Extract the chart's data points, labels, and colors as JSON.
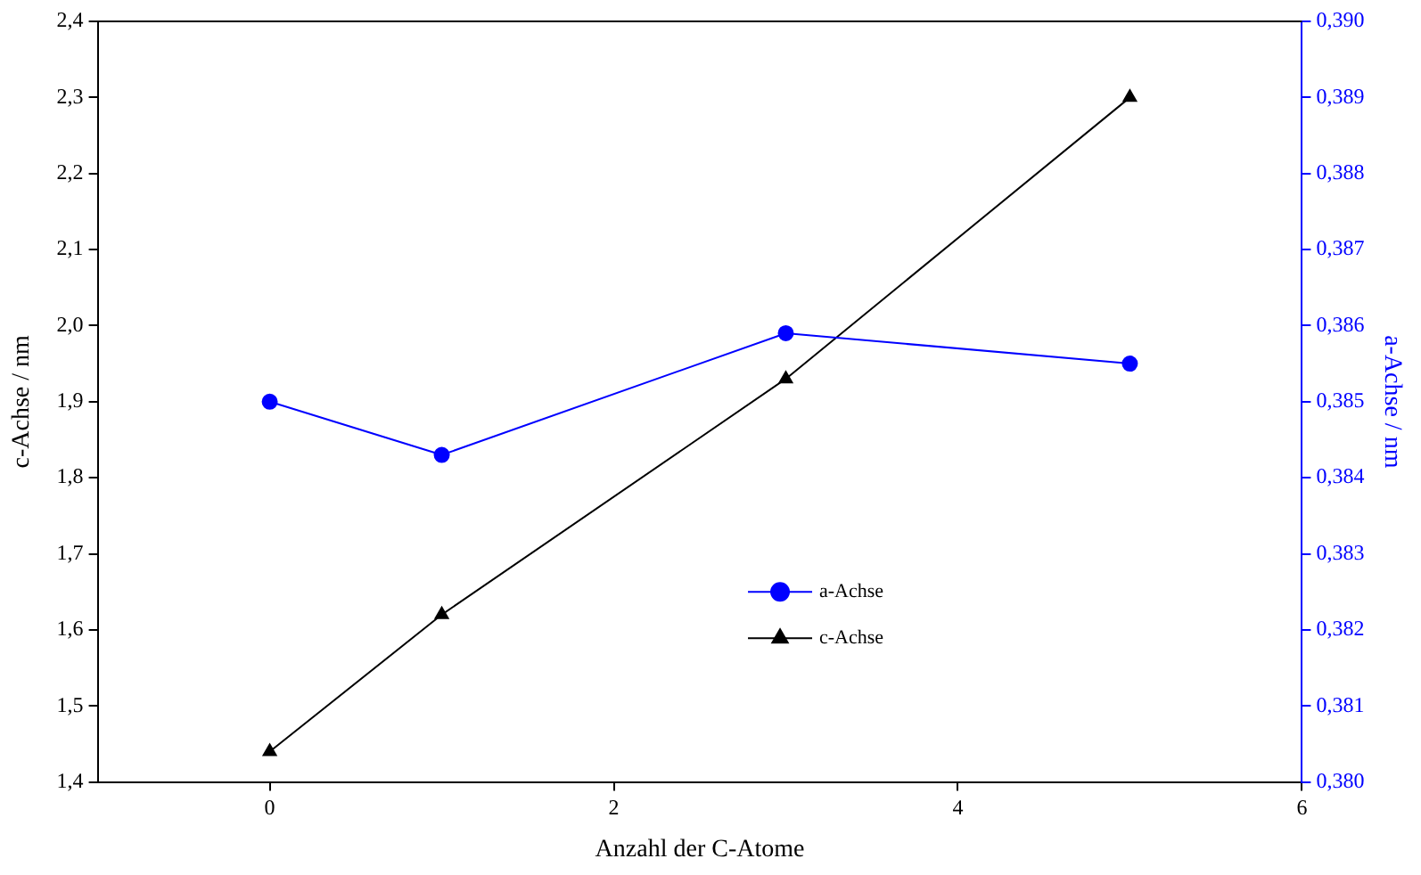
{
  "chart_data": {
    "type": "line",
    "xlabel": "Anzahl der C-Atome",
    "ylabel": "c-Achse / nm",
    "y2label": "a-Achse / nm",
    "x": [
      0,
      1,
      3,
      5
    ],
    "series": [
      {
        "name": "a-Achse",
        "color": "#0000ff",
        "axis": "y2",
        "marker": "circle",
        "values": [
          0.385,
          0.3843,
          0.3859,
          0.3855
        ]
      },
      {
        "name": "c-Achse",
        "color": "#000000",
        "axis": "y",
        "marker": "triangle",
        "values": [
          1.44,
          1.62,
          1.93,
          2.3
        ]
      }
    ],
    "xlim": [
      -1,
      6
    ],
    "xticks": [
      0,
      2,
      4,
      6
    ],
    "ylim": [
      1.4,
      2.4
    ],
    "yticks": [
      {
        "value": 1.4,
        "label": "1,4"
      },
      {
        "value": 1.5,
        "label": "1,5"
      },
      {
        "value": 1.6,
        "label": "1,6"
      },
      {
        "value": 1.7,
        "label": "1,7"
      },
      {
        "value": 1.8,
        "label": "1,8"
      },
      {
        "value": 1.9,
        "label": "1,9"
      },
      {
        "value": 2.0,
        "label": "2,0"
      },
      {
        "value": 2.1,
        "label": "2,1"
      },
      {
        "value": 2.2,
        "label": "2,2"
      },
      {
        "value": 2.3,
        "label": "2,3"
      },
      {
        "value": 2.4,
        "label": "2,4"
      }
    ],
    "y2lim": [
      0.38,
      0.39
    ],
    "y2ticks": [
      {
        "value": 0.38,
        "label": "0,380"
      },
      {
        "value": 0.381,
        "label": "0,381"
      },
      {
        "value": 0.382,
        "label": "0,382"
      },
      {
        "value": 0.383,
        "label": "0,383"
      },
      {
        "value": 0.384,
        "label": "0,384"
      },
      {
        "value": 0.385,
        "label": "0,385"
      },
      {
        "value": 0.386,
        "label": "0,386"
      },
      {
        "value": 0.387,
        "label": "0,387"
      },
      {
        "value": 0.388,
        "label": "0,388"
      },
      {
        "value": 0.389,
        "label": "0,389"
      },
      {
        "value": 0.39,
        "label": "0,390"
      }
    ],
    "grid": false,
    "legend": "center"
  }
}
